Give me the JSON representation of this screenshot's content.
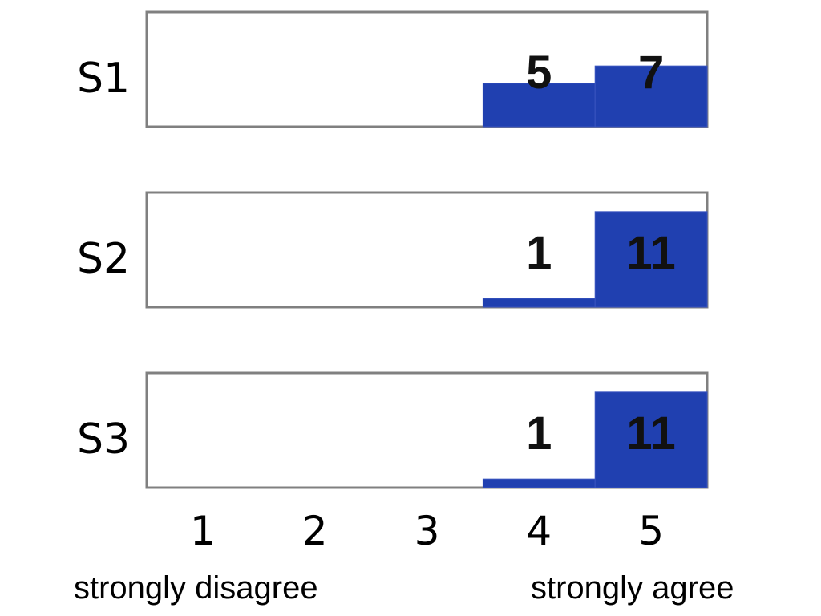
{
  "chart_data": {
    "type": "bar",
    "title": "",
    "categories": [
      "1",
      "2",
      "3",
      "4",
      "5"
    ],
    "ylim": [
      0,
      12
    ],
    "series": [
      {
        "name": "S1",
        "values": [
          0,
          0,
          0,
          5,
          7
        ]
      },
      {
        "name": "S2",
        "values": [
          0,
          0,
          0,
          1,
          11
        ]
      },
      {
        "name": "S3",
        "values": [
          0,
          0,
          0,
          1,
          11
        ]
      }
    ],
    "anchors": {
      "left": "strongly disagree",
      "right": "strongly agree"
    },
    "bar_color": "#2040B0",
    "frame_color": "#808080"
  }
}
